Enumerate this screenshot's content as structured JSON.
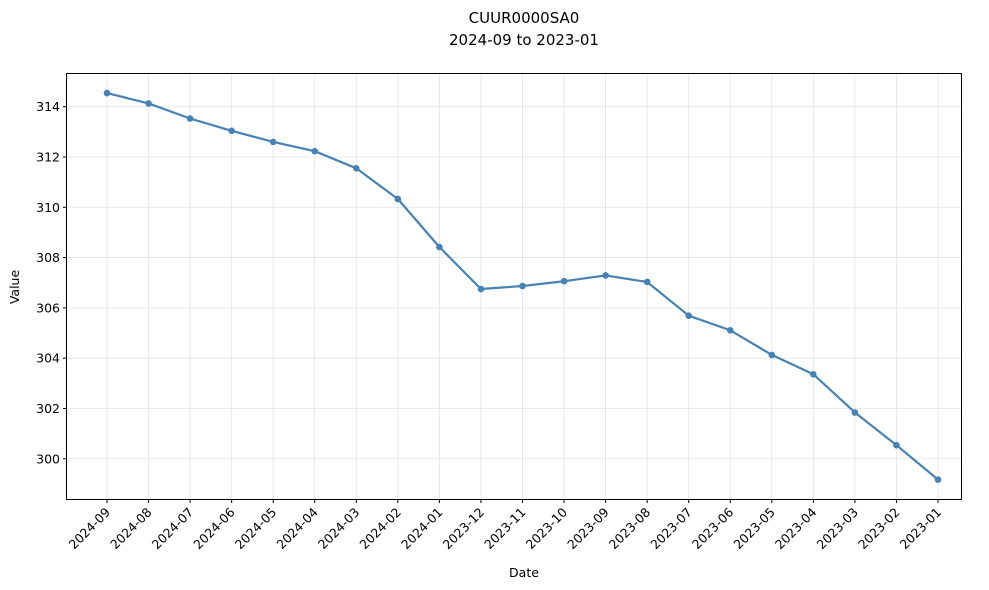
{
  "chart_data": {
    "type": "line",
    "title": "CUUR0000SA0",
    "subtitle": "2024-09 to 2023-01",
    "xlabel": "Date",
    "ylabel": "Value",
    "grid": true,
    "ylim": [
      298.4,
      315.3
    ],
    "yticks": [
      300,
      302,
      304,
      306,
      308,
      310,
      312,
      314
    ],
    "x": [
      "2024-09",
      "2024-08",
      "2024-07",
      "2024-06",
      "2024-05",
      "2024-04",
      "2024-03",
      "2024-02",
      "2024-01",
      "2023-12",
      "2023-11",
      "2023-10",
      "2023-09",
      "2023-08",
      "2023-07",
      "2023-06",
      "2023-05",
      "2023-04",
      "2023-03",
      "2023-02",
      "2023-01"
    ],
    "series": [
      {
        "color": "#4682b4",
        "values": [
          314.54,
          314.13,
          313.53,
          313.04,
          312.6,
          312.23,
          311.55,
          310.33,
          308.42,
          306.75,
          306.87,
          307.06,
          307.29,
          307.03,
          305.69,
          305.11,
          304.13,
          303.36,
          301.84,
          300.54,
          299.17
        ]
      }
    ]
  }
}
